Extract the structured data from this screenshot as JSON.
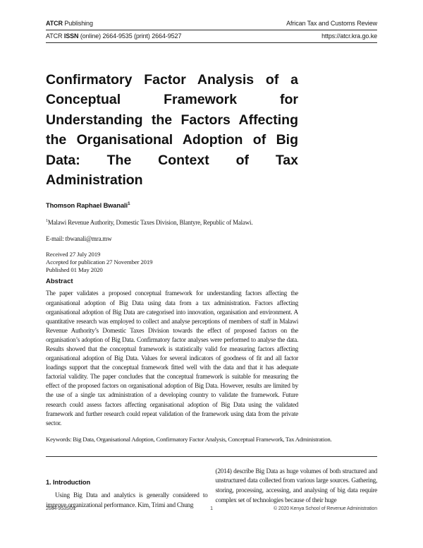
{
  "header": {
    "publisher_bold": "ATCR",
    "publisher_rest": " Publishing",
    "journal": "African Tax and Customs Review",
    "issn_prefix": "ATCR ",
    "issn_bold": "ISSN",
    "issn_rest": " (online) 2664-9535 (print) 2664-9527",
    "url": "https://atcr.kra.go.ke"
  },
  "title": {
    "full": "Confirmatory Factor Analysis of a Conceptual Framework for Understanding the Factors Affecting the Organisational Adoption of Big Data: The Context of Tax Administration",
    "lines": [
      "Confirmatory Factor Analysis of a",
      "Conceptual Framework for",
      "Understanding the Factors Affecting",
      "the Organisational Adoption of Big",
      "Data: The Context of Tax",
      "Administration"
    ]
  },
  "author": {
    "name": "Thomson Raphael Bwanali",
    "superscript": "1"
  },
  "affiliation": {
    "superscript": "1",
    "text": "Malawi Revenue Authority, Domestic Taxes Division, Blantyre, Republic of Malawi."
  },
  "email": "E-mail: tbwanali@mra.mw",
  "dates": {
    "received": "Received 27 July 2019",
    "accepted": "Accepted for publication 27 November 2019",
    "published": "Published 01 May 2020"
  },
  "abstract": {
    "heading": "Abstract",
    "text": "The paper validates a proposed conceptual framework for understanding factors affecting the organisational adoption of Big Data using data from a tax administration. Factors affecting organisational adoption of Big Data are categorised into innovation, organisation and environment. A quantitative research was employed to collect and analyse perceptions of members of staff in Malawi Revenue Authority’s Domestic Taxes Division towards the effect of proposed factors on the organisation’s adoption of Big Data. Confirmatory factor analyses were performed to analyse the data. Results showed that the conceptual framework is statistically valid for measuring factors affecting organisational adoption of Big Data. Values for several indicators of goodness of fit and all factor loadings support that the conceptual framework fitted well with the data and that it has adequate factorial validity. The paper concludes that the conceptual framework is suitable for measuring the effect of the proposed factors on organisational adoption of Big Data. However, results are limited by the use of a single tax administration of a developing country to validate the framework. Future research could assess factors affecting organisational adoption of Big Data using the validated framework and further research could repeat validation of the framework using data from the private sector."
  },
  "keywords": "Keywords: Big Data, Organisational Adoption, Confirmatory Factor Analysis, Conceptual Framework, Tax Administration.",
  "sections": {
    "intro_heading": "1. Introduction",
    "left_paragraph": "Using Big Data and analytics is generally considered to improve organizational performance. Kim, Trimi and Chung",
    "right_paragraph": "(2014) describe Big Data as huge volumes of both structured and unstructured data collected from various large sources. Gathering, storing, processing, accessing, and analysing of big data require complex set of technologies because of their huge"
  },
  "footer": {
    "left": "2664-9535/01",
    "page_number": "1",
    "right": "© 2020 Kenya School of Revenue Administration"
  }
}
